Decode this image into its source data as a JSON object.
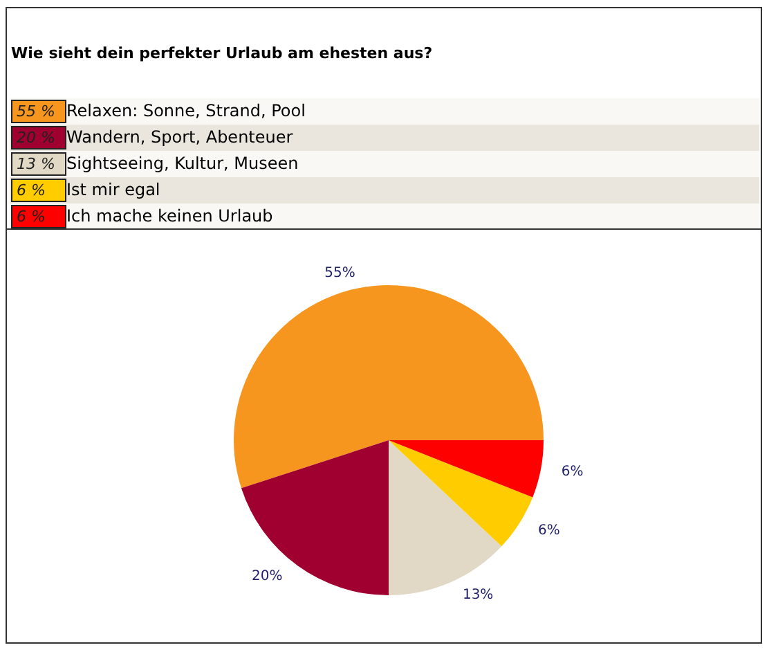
{
  "chart_data": {
    "type": "pie",
    "title": "Wie sieht dein perfekter Urlaub am ehesten aus?",
    "categories": [
      "Relaxen: Sonne, Strand, Pool",
      "Wandern, Sport, Abenteuer",
      "Sightseeing, Kultur, Museen",
      "Ist mir egal",
      "Ich mache keinen Urlaub"
    ],
    "values": [
      55,
      20,
      13,
      6,
      6
    ],
    "colors": [
      "#f7961f",
      "#a00030",
      "#e1d9c6",
      "#ffcc00",
      "#ff0000"
    ],
    "value_labels": [
      "55%",
      "20%",
      "13%",
      "6%",
      "6%"
    ],
    "annotations": [
      "55 %",
      "20 %",
      "13 %",
      "6 %",
      "6 %"
    ],
    "legend": "top left"
  }
}
